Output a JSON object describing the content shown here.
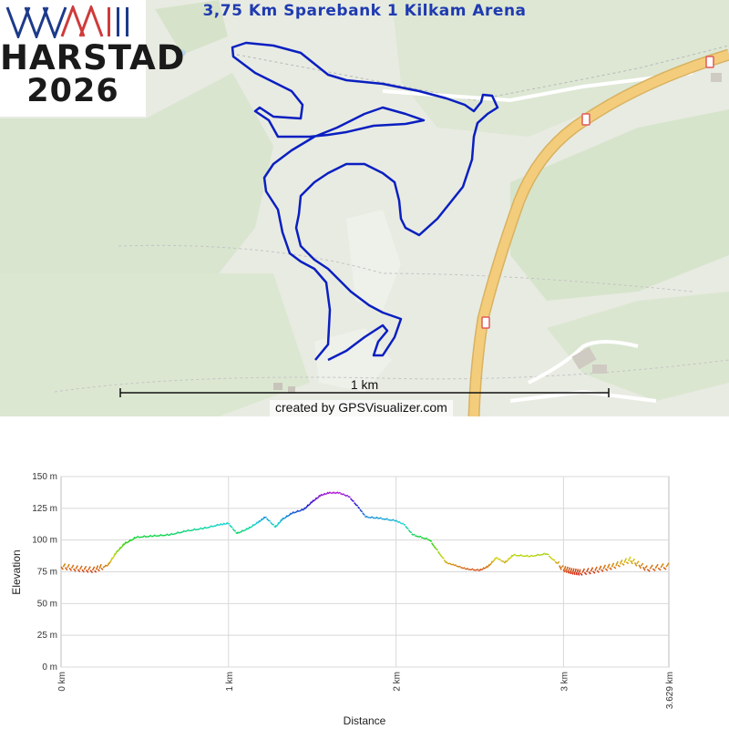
{
  "logo": {
    "line1": "HARSTAD",
    "line2": "2026"
  },
  "map": {
    "title": "3,75 Km Sparebank 1 Kilkam Arena",
    "scale_label": "1 km",
    "credit": "created by GPSVisualizer.com",
    "route_color": "#0a1fc0",
    "road_color": "#f2c976",
    "road_shield_color": "#e05a5a"
  },
  "chart_data": {
    "type": "line",
    "xlabel": "Distance",
    "ylabel": "Elevation",
    "x_ticks": [
      "0 km",
      "1 km",
      "2 km",
      "3 km",
      "3.629 km"
    ],
    "y_ticks": [
      "0 m",
      "25 m",
      "50 m",
      "75 m",
      "100 m",
      "125 m",
      "150 m"
    ],
    "xlim": [
      0,
      3.629
    ],
    "ylim": [
      0,
      150
    ],
    "x": [
      0,
      0.1,
      0.2,
      0.28,
      0.33,
      0.38,
      0.45,
      0.55,
      0.65,
      0.75,
      0.85,
      0.95,
      1.0,
      1.05,
      1.12,
      1.18,
      1.22,
      1.28,
      1.32,
      1.38,
      1.45,
      1.5,
      1.55,
      1.6,
      1.66,
      1.72,
      1.78,
      1.82,
      1.9,
      2.0,
      2.05,
      2.1,
      2.2,
      2.3,
      2.35,
      2.42,
      2.5,
      2.55,
      2.6,
      2.65,
      2.7,
      2.8,
      2.9,
      3.0,
      3.05,
      3.1,
      3.2,
      3.3,
      3.4,
      3.5,
      3.629
    ],
    "elevation": [
      79,
      77,
      76,
      80,
      90,
      97,
      102,
      103,
      104,
      107,
      109,
      112,
      113,
      105,
      109,
      114,
      118,
      110,
      116,
      121,
      124,
      130,
      135,
      137,
      137,
      134,
      125,
      118,
      117,
      115,
      112,
      104,
      100,
      82,
      80,
      77,
      76,
      79,
      86,
      82,
      88,
      87,
      89,
      77,
      75,
      74,
      76,
      79,
      84,
      77,
      79
    ],
    "color_scale": "elevation rainbow: red (low) to violet (high)"
  }
}
